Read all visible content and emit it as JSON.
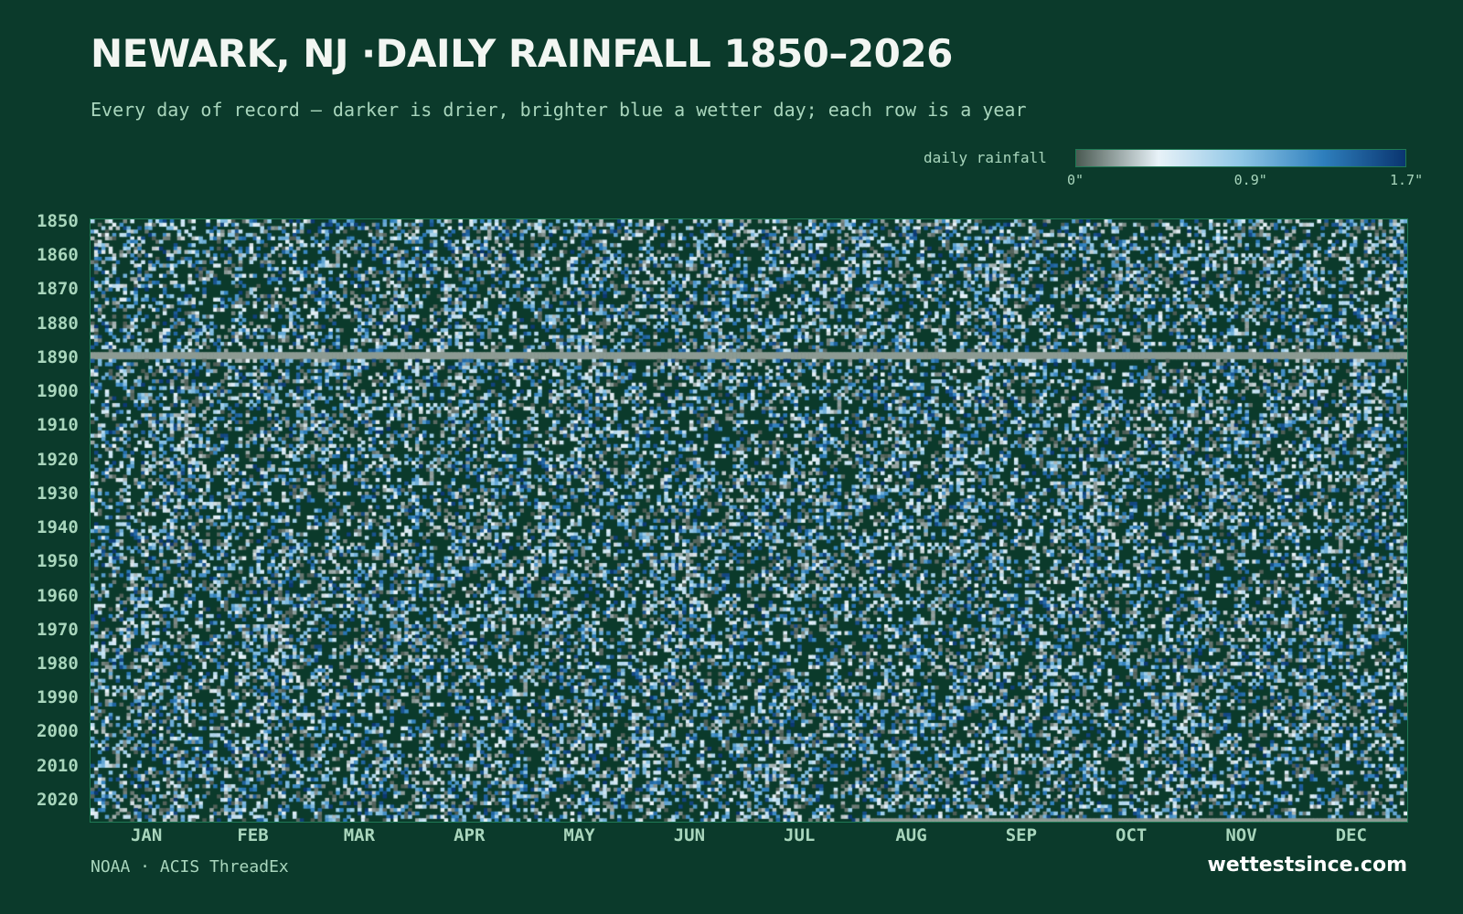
{
  "header": {
    "title": "NEWARK, NJ ·DAILY RAINFALL 1850–2026",
    "subtitle": "Every day of record — darker is drier, brighter blue a wetter day; each row is a year"
  },
  "legend": {
    "label": "daily rainfall",
    "ticks": [
      "0\"",
      "0.9\"",
      "1.7\""
    ],
    "tick_values": [
      0,
      0.9,
      1.7
    ]
  },
  "footer": {
    "source": "NOAA · ACIS ThreadEx",
    "brand": "wettestsince.com"
  },
  "colors": {
    "background": "#0b3a2b",
    "dry": "#0b3a2b",
    "missing": "#8c9a93",
    "scale": [
      "#4a5a52",
      "#e8f2f8",
      "#8fc6e6",
      "#2e7fbd",
      "#0a3570"
    ]
  },
  "chart_data": {
    "type": "heatmap",
    "title": "NEWARK, NJ ·DAILY RAINFALL 1850–2026",
    "subtitle": "Every day of record — darker is drier, brighter blue a wetter day; each row is a year",
    "y_range": [
      1850,
      2026
    ],
    "y_tick_labels": [
      "1850",
      "1860",
      "1870",
      "1880",
      "1890",
      "1900",
      "1910",
      "1920",
      "1930",
      "1940",
      "1950",
      "1960",
      "1970",
      "1980",
      "1990",
      "2000",
      "2010",
      "2020"
    ],
    "x_tick_labels": [
      "JAN",
      "FEB",
      "MAR",
      "APR",
      "MAY",
      "JUN",
      "JUL",
      "AUG",
      "SEP",
      "OCT",
      "NOV",
      "DEC"
    ],
    "color_scale_range": [
      0,
      1.7
    ],
    "color_scale_unit": "inches",
    "missing_years": [
      1889,
      1890
    ],
    "missing_from_date": "2026-08-05",
    "cell_values": "daily rainfall per day of record (individual values not readable from image)"
  }
}
